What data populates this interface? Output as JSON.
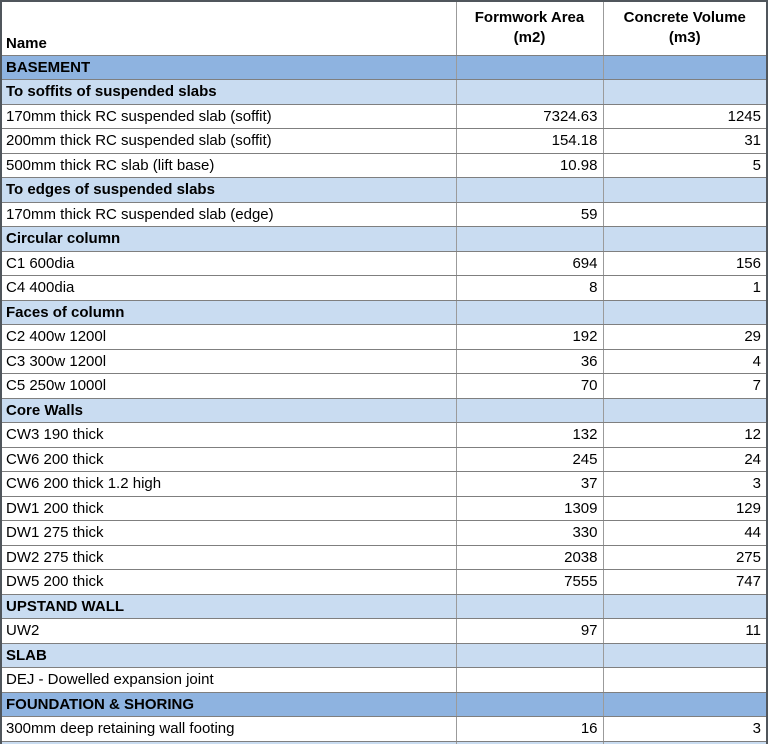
{
  "header": {
    "columns": [
      {
        "label": "Name",
        "sublabel": ""
      },
      {
        "label": "Formwork Area",
        "sublabel": "(m2)"
      },
      {
        "label": "Concrete Volume",
        "sublabel": "(m3)"
      }
    ]
  },
  "colors": {
    "section_dark_blue": "#8eb3e0",
    "section_light_blue": "#c9dcf1",
    "gridline": "#7f7f7f",
    "outer_border": "#50565c",
    "text": "#000000"
  },
  "table": {
    "rows": [
      {
        "type": "section-dark",
        "name": "BASEMENT",
        "formwork": "",
        "concrete": ""
      },
      {
        "type": "section-light",
        "name": "To soffits of suspended slabs",
        "formwork": "",
        "concrete": ""
      },
      {
        "type": "data",
        "name": "170mm thick RC suspended slab (soffit)",
        "formwork": "7324.63",
        "concrete": "1245"
      },
      {
        "type": "data",
        "name": "200mm thick RC suspended slab (soffit)",
        "formwork": "154.18",
        "concrete": "31"
      },
      {
        "type": "data",
        "name": "500mm thick RC slab (lift base)",
        "formwork": "10.98",
        "concrete": "5"
      },
      {
        "type": "section-light",
        "name": "To edges of suspended slabs",
        "formwork": "",
        "concrete": ""
      },
      {
        "type": "data",
        "name": "170mm thick RC suspended slab (edge)",
        "formwork": "59",
        "concrete": ""
      },
      {
        "type": "section-light",
        "name": "Circular column",
        "formwork": "",
        "concrete": ""
      },
      {
        "type": "data",
        "name": "C1 600dia",
        "formwork": "694",
        "concrete": "156"
      },
      {
        "type": "data",
        "name": "C4 400dia",
        "formwork": "8",
        "concrete": "1"
      },
      {
        "type": "section-light",
        "name": "Faces of column",
        "formwork": "",
        "concrete": ""
      },
      {
        "type": "data",
        "name": "C2 400w 1200l",
        "formwork": "192",
        "concrete": "29"
      },
      {
        "type": "data",
        "name": "C3 300w 1200l",
        "formwork": "36",
        "concrete": "4"
      },
      {
        "type": "data",
        "name": "C5 250w 1000l",
        "formwork": "70",
        "concrete": "7"
      },
      {
        "type": "section-light",
        "name": "Core Walls",
        "formwork": "",
        "concrete": ""
      },
      {
        "type": "data",
        "name": "CW3 190 thick",
        "formwork": "132",
        "concrete": "12"
      },
      {
        "type": "data",
        "name": "CW6 200 thick",
        "formwork": "245",
        "concrete": "24"
      },
      {
        "type": "data",
        "name": "CW6 200 thick 1.2 high",
        "formwork": "37",
        "concrete": "3"
      },
      {
        "type": "data",
        "name": "DW1 200 thick",
        "formwork": "1309",
        "concrete": "129"
      },
      {
        "type": "data",
        "name": "DW1 275 thick",
        "formwork": "330",
        "concrete": "44"
      },
      {
        "type": "data",
        "name": "DW2 275 thick",
        "formwork": "2038",
        "concrete": "275"
      },
      {
        "type": "data",
        "name": "DW5 200 thick",
        "formwork": "7555",
        "concrete": "747"
      },
      {
        "type": "section-light",
        "name": "UPSTAND WALL",
        "formwork": "",
        "concrete": ""
      },
      {
        "type": "data",
        "name": "UW2",
        "formwork": "97",
        "concrete": "11"
      },
      {
        "type": "section-light",
        "name": "SLAB",
        "formwork": "",
        "concrete": ""
      },
      {
        "type": "data",
        "name": "DEJ - Dowelled expansion joint",
        "formwork": "",
        "concrete": ""
      },
      {
        "type": "section-dark",
        "name": "FOUNDATION & SHORING",
        "formwork": "",
        "concrete": ""
      },
      {
        "type": "data",
        "name": "300mm deep retaining wall footing",
        "formwork": "16",
        "concrete": "3"
      }
    ]
  }
}
